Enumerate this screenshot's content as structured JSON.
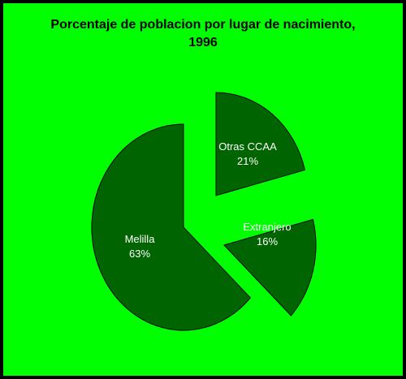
{
  "chart_data": {
    "type": "pie",
    "title_lines": [
      "Porcentaje de poblacion por lugar de nacimiento,",
      "1996"
    ],
    "slices": [
      {
        "name": "Otras CCAA",
        "value": 21,
        "label": "21%"
      },
      {
        "name": "Extranjero",
        "value": 16,
        "label": "16%"
      },
      {
        "name": "Melilla",
        "value": 63,
        "label": "63%"
      }
    ],
    "colors": {
      "background": "#00ff00",
      "frame": "#000000",
      "slice_fill": "#006400",
      "slice_stroke": "#000000",
      "label": "#ffffff",
      "title": "#000000"
    }
  }
}
